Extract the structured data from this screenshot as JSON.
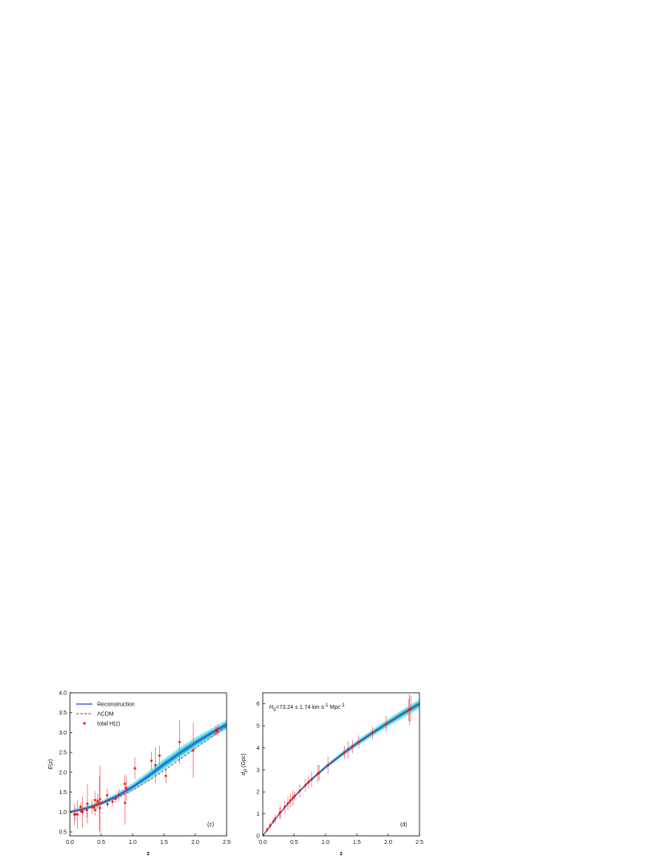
{
  "chart_data": [
    {
      "type": "line",
      "xlabel": "z",
      "ylabel_parts": [
        {
          "text": "E",
          "italic": true
        },
        {
          "text": "(z)"
        }
      ],
      "panel_label": "(c)",
      "legend": "upper left",
      "xlim": [
        0,
        2.5
      ],
      "ylim": [
        0.4,
        4.0
      ],
      "xticks": [
        {
          "value": 0,
          "label": "0.0"
        },
        0.5,
        {
          "value": 1,
          "label": "1.0"
        },
        1.5,
        {
          "value": 2,
          "label": "2.0"
        },
        2.5
      ],
      "yticks": [
        0.5,
        {
          "value": 1,
          "label": "1.0"
        },
        1.5,
        {
          "value": 2,
          "label": "2.0"
        },
        2.5,
        {
          "value": 3,
          "label": "3.0"
        },
        3.5,
        {
          "value": 4,
          "label": "4.0"
        }
      ],
      "x": [
        0,
        0.25,
        0.5,
        0.75,
        1,
        1.25,
        1.5,
        1.75,
        2,
        2.25,
        2.5
      ],
      "bands": [
        {
          "color": "#8de8f2",
          "lower": [
            0.96,
            1.03,
            1.16,
            1.32,
            1.53,
            1.78,
            2.06,
            2.34,
            2.6,
            2.86,
            3.08
          ],
          "upper": [
            1.04,
            1.15,
            1.28,
            1.48,
            1.73,
            2.02,
            2.34,
            2.62,
            2.88,
            3.1,
            3.32
          ]
        },
        {
          "color": "#25b9c9",
          "lower": [
            0.98,
            1.06,
            1.19,
            1.36,
            1.58,
            1.84,
            2.13,
            2.41,
            2.67,
            2.92,
            3.14
          ],
          "upper": [
            1.02,
            1.12,
            1.25,
            1.44,
            1.68,
            1.96,
            2.27,
            2.55,
            2.81,
            3.04,
            3.26
          ]
        }
      ],
      "series": [
        {
          "name": "Reconstruction",
          "color": "#3434ff",
          "dash": false,
          "values": [
            1.0,
            1.09,
            1.22,
            1.4,
            1.63,
            1.9,
            2.2,
            2.48,
            2.74,
            2.98,
            3.2
          ]
        },
        {
          "name": "ΛCDM",
          "color": "#b0282a",
          "dash": true,
          "values": [
            1.0,
            1.09,
            1.21,
            1.36,
            1.55,
            1.78,
            2.04,
            2.32,
            2.6,
            2.88,
            3.15
          ]
        }
      ],
      "points": {
        "name": "total H(z)",
        "color": "#ee1111",
        "error_color": "#f06a6a",
        "x": [
          0.07,
          0.09,
          0.12,
          0.17,
          0.179,
          0.199,
          0.2,
          0.27,
          0.28,
          0.352,
          0.38,
          0.4,
          0.4004,
          0.425,
          0.445,
          0.47,
          0.4783,
          0.48,
          0.51,
          0.593,
          0.6,
          0.68,
          0.73,
          0.781,
          0.875,
          0.88,
          0.9,
          1.037,
          1.3,
          1.363,
          1.43,
          1.53,
          1.75,
          1.965,
          2.33,
          2.34,
          2.36
        ],
        "values": [
          0.94,
          0.94,
          0.94,
          1.13,
          1.02,
          1.02,
          1.0,
          1.05,
          1.21,
          1.13,
          1.11,
          1.3,
          1.05,
          1.19,
          1.27,
          1.22,
          1.1,
          1.32,
          1.23,
          1.42,
          1.2,
          1.26,
          1.33,
          1.43,
          1.71,
          1.23,
          1.6,
          2.1,
          2.29,
          2.18,
          2.42,
          1.91,
          2.76,
          2.55,
          3.06,
          3.03,
          3.09
        ],
        "errors": [
          0.27,
          0.16,
          0.36,
          0.11,
          0.05,
          0.07,
          0.4,
          0.19,
          0.5,
          0.19,
          0.03,
          0.23,
          0.14,
          0.15,
          0.18,
          0.68,
          0.12,
          0.85,
          0.03,
          0.18,
          0.08,
          0.11,
          0.1,
          0.16,
          0.23,
          0.55,
          0.31,
          0.27,
          0.23,
          0.46,
          0.25,
          0.19,
          0.55,
          0.69,
          0.11,
          0.1,
          0.11
        ]
      }
    },
    {
      "type": "line",
      "xlabel": "z",
      "ylabel_parts": [
        {
          "text": "d",
          "italic": true
        },
        {
          "text": "P",
          "italic": true,
          "shift": "sub"
        },
        {
          "text": " (Gpc)"
        }
      ],
      "panel_label": "(d)",
      "annotation_parts": [
        {
          "text": "H",
          "italic": true
        },
        {
          "text": "0",
          "shift": "sub"
        },
        {
          "text": "=73.24 ± 1.74 km s"
        },
        {
          "text": "-1",
          "shift": "super"
        },
        {
          "text": " Mpc"
        },
        {
          "text": "-1",
          "shift": "super"
        }
      ],
      "xlim": [
        0,
        2.5
      ],
      "ylim": [
        0,
        6.5
      ],
      "xticks": [
        {
          "value": 0,
          "label": "0.0"
        },
        0.5,
        {
          "value": 1,
          "label": "1.0"
        },
        1.5,
        {
          "value": 2,
          "label": "2.0"
        },
        2.5
      ],
      "yticks": [
        0,
        1,
        2,
        3,
        4,
        5,
        6
      ],
      "x": [
        0,
        0.25,
        0.5,
        0.75,
        1,
        1.25,
        1.5,
        1.75,
        2,
        2.25,
        2.5
      ],
      "bands": [
        {
          "color": "#8de8f2",
          "lower": [
            0,
            0.91,
            1.72,
            2.42,
            3.02,
            3.56,
            4.06,
            4.52,
            4.96,
            5.38,
            5.78
          ],
          "upper": [
            0,
            0.99,
            1.84,
            2.58,
            3.22,
            3.8,
            4.34,
            4.84,
            5.32,
            5.78,
            6.22
          ]
        },
        {
          "color": "#25b9c9",
          "lower": [
            0,
            0.93,
            1.75,
            2.46,
            3.07,
            3.62,
            4.13,
            4.6,
            5.05,
            5.48,
            5.89
          ],
          "upper": [
            0,
            0.97,
            1.81,
            2.54,
            3.17,
            3.74,
            4.27,
            4.76,
            5.23,
            5.68,
            6.11
          ]
        }
      ],
      "series": [
        {
          "color": "#3434ff",
          "dash": false,
          "values": [
            0,
            0.95,
            1.78,
            2.5,
            3.12,
            3.68,
            4.2,
            4.68,
            5.14,
            5.58,
            6.0
          ]
        },
        {
          "color": "#b0282a",
          "dash": true,
          "values": [
            0,
            0.95,
            1.78,
            2.49,
            3.1,
            3.66,
            4.18,
            4.67,
            5.13,
            5.57,
            6.0
          ]
        }
      ],
      "points": {
        "color": "#ee1111",
        "error_color": "#f06a6a",
        "x": [
          0.07,
          0.12,
          0.17,
          0.2,
          0.27,
          0.28,
          0.35,
          0.4,
          0.44,
          0.48,
          0.51,
          0.59,
          0.68,
          0.73,
          0.78,
          0.88,
          0.9,
          1.04,
          1.3,
          1.36,
          1.43,
          1.53,
          1.75,
          1.97,
          2.33,
          2.34,
          2.36
        ],
        "values": [
          0.28,
          0.48,
          0.67,
          0.78,
          1.03,
          1.07,
          1.32,
          1.48,
          1.61,
          1.73,
          1.81,
          2.05,
          2.3,
          2.44,
          2.57,
          2.83,
          2.87,
          3.21,
          3.79,
          3.92,
          4.06,
          4.26,
          4.68,
          5.09,
          5.72,
          5.74,
          5.77
        ],
        "errors": [
          0.1,
          0.15,
          0.12,
          0.2,
          0.25,
          0.3,
          0.28,
          0.3,
          0.3,
          0.35,
          0.2,
          0.3,
          0.3,
          0.3,
          0.35,
          0.4,
          0.35,
          0.4,
          0.3,
          0.4,
          0.3,
          0.3,
          0.3,
          0.35,
          0.5,
          0.7,
          0.6
        ]
      }
    }
  ]
}
